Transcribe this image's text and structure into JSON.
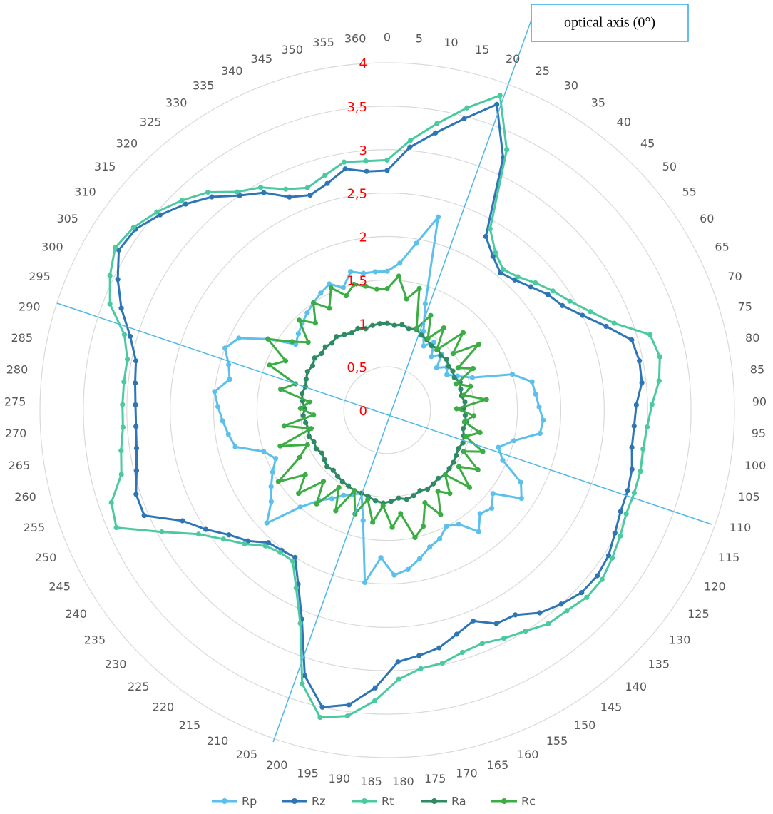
{
  "chart_data": {
    "type": "radar",
    "annotation": "optical axis (0°)",
    "categories": [
      "0",
      "5",
      "10",
      "15",
      "20",
      "25",
      "30",
      "35",
      "40",
      "45",
      "50",
      "55",
      "60",
      "65",
      "70",
      "75",
      "80",
      "85",
      "90",
      "95",
      "100",
      "105",
      "110",
      "115",
      "120",
      "125",
      "130",
      "135",
      "140",
      "145",
      "150",
      "155",
      "160",
      "165",
      "170",
      "175",
      "180",
      "185",
      "190",
      "195",
      "200",
      "205",
      "210",
      "215",
      "220",
      "225",
      "230",
      "235",
      "240",
      "245",
      "250",
      "255",
      "260",
      "265",
      "270",
      "275",
      "280",
      "285",
      "290",
      "295",
      "300",
      "305",
      "310",
      "315",
      "320",
      "325",
      "330",
      "335",
      "340",
      "345",
      "350",
      "355",
      "360"
    ],
    "ylim": [
      0,
      4
    ],
    "yticks": [
      0,
      {
        "value": 0.5,
        "label": "0,5"
      },
      1,
      {
        "value": 1.5,
        "label": "1,5"
      },
      2,
      {
        "value": 2.5,
        "label": "2,5"
      },
      3,
      {
        "value": 3.5,
        "label": "3,5"
      },
      4
    ],
    "grid": true,
    "legend": "bottom",
    "series": [
      {
        "name": "Rp",
        "color": "#5bc0eb",
        "values": [
          1.6,
          1.7,
          1.95,
          2.3,
          1.3,
          1.0,
          0.85,
          0.95,
          0.8,
          0.9,
          0.75,
          0.85,
          0.8,
          0.9,
          1.05,
          1.5,
          1.7,
          1.72,
          1.75,
          1.8,
          1.78,
          1.5,
          1.35,
          1.45,
          1.75,
          1.85,
          1.55,
          1.65,
          1.6,
          1.75,
          1.55,
          1.5,
          1.6,
          1.65,
          1.75,
          1.85,
          1.9,
          1.7,
          2.0,
          1.3,
          1.0,
          1.05,
          1.1,
          1.2,
          1.3,
          1.5,
          1.9,
          1.7,
          1.6,
          1.5,
          1.4,
          1.5,
          1.8,
          1.85,
          1.9,
          1.95,
          2.0,
          1.85,
          1.9,
          2.0,
          1.9,
          1.6,
          1.3,
          1.35,
          1.4,
          1.45,
          1.5,
          1.55,
          1.6,
          1.5,
          1.65,
          1.6,
          1.6
        ]
      },
      {
        "name": "Rz",
        "color": "#2e75b6",
        "values": [
          2.76,
          3.04,
          3.24,
          3.47,
          3.74,
          3.2,
          2.3,
          2.15,
          2.05,
          2.1,
          2.18,
          2.28,
          2.35,
          2.5,
          2.7,
          2.93,
          2.96,
          2.95,
          2.87,
          2.85,
          2.85,
          2.9,
          2.92,
          2.93,
          2.98,
          3.05,
          3.08,
          3.07,
          3.0,
          2.92,
          2.78,
          2.76,
          2.62,
          2.7,
          2.8,
          2.85,
          2.9,
          3.2,
          3.42,
          3.5,
          3.2,
          2.6,
          2.25,
          2.0,
          2.02,
          2.05,
          2.2,
          2.32,
          2.5,
          2.68,
          3.05,
          3.05,
          2.97,
          2.92,
          2.9,
          2.9,
          2.92,
          2.95,
          3.08,
          3.28,
          3.45,
          3.6,
          3.57,
          3.45,
          3.32,
          3.18,
          3.0,
          2.88,
          2.7,
          2.63,
          2.7,
          2.82,
          2.76
        ]
      },
      {
        "name": "Rt",
        "color": "#4bc9a0",
        "values": [
          2.88,
          3.12,
          3.35,
          3.6,
          3.85,
          3.3,
          2.4,
          2.2,
          2.1,
          2.15,
          2.25,
          2.35,
          2.45,
          2.6,
          2.8,
          3.15,
          3.2,
          3.15,
          3.05,
          3.0,
          2.98,
          3.0,
          3.0,
          3.0,
          3.05,
          3.1,
          3.15,
          3.15,
          3.1,
          3.08,
          3.0,
          2.95,
          2.9,
          2.92,
          2.98,
          3.0,
          3.1,
          3.35,
          3.55,
          3.62,
          3.3,
          2.65,
          2.3,
          2.05,
          2.05,
          2.1,
          2.25,
          2.4,
          2.6,
          2.95,
          3.4,
          3.35,
          3.15,
          3.1,
          3.05,
          3.05,
          3.05,
          3.05,
          3.15,
          3.42,
          3.55,
          3.65,
          3.6,
          3.5,
          3.38,
          3.25,
          3.05,
          2.95,
          2.8,
          2.72,
          2.8,
          2.9,
          2.88
        ]
      },
      {
        "name": "Ra",
        "color": "#2d8a63",
        "values": [
          1.0,
          0.98,
          1.0,
          0.97,
          0.99,
          0.95,
          0.93,
          0.9,
          0.92,
          0.88,
          0.9,
          0.87,
          0.88,
          0.86,
          0.9,
          0.88,
          0.87,
          0.9,
          0.88,
          0.9,
          0.92,
          0.9,
          0.93,
          0.95,
          0.93,
          0.95,
          0.97,
          0.98,
          1.0,
          0.98,
          1.0,
          1.02,
          1.0,
          1.03,
          1.05,
          1.02,
          1.05,
          1.07,
          1.05,
          1.02,
          1.0,
          1.0,
          0.98,
          0.97,
          0.95,
          0.93,
          0.95,
          0.92,
          0.9,
          0.93,
          0.92,
          0.95,
          0.93,
          0.95,
          0.97,
          0.95,
          0.98,
          1.0,
          0.98,
          1.0,
          1.02,
          1.0,
          1.03,
          1.0,
          1.02,
          1.0,
          1.03,
          1.0,
          0.98,
          1.0,
          0.97,
          0.99,
          1.0
        ]
      },
      {
        "name": "Rc",
        "color": "#3cad45",
        "values": [
          1.4,
          1.55,
          1.3,
          1.45,
          1.0,
          1.2,
          0.95,
          1.15,
          0.9,
          1.25,
          1.0,
          1.3,
          0.95,
          1.1,
          0.85,
          1.0,
          0.9,
          1.15,
          0.8,
          1.0,
          0.9,
          1.1,
          0.95,
          1.2,
          1.0,
          1.25,
          1.05,
          1.3,
          1.0,
          1.2,
          1.1,
          1.35,
          1.15,
          1.4,
          1.5,
          1.2,
          1.35,
          1.1,
          1.3,
          1.05,
          1.25,
          1.0,
          1.3,
          1.05,
          1.35,
          1.1,
          1.4,
          1.2,
          1.5,
          1.15,
          1.0,
          1.3,
          0.9,
          1.2,
          0.85,
          1.0,
          0.9,
          1.25,
          1.1,
          1.45,
          1.3,
          1.6,
          1.35,
          1.2,
          1.45,
          1.3,
          1.5,
          1.35,
          1.55,
          1.4,
          1.5,
          1.45,
          1.4
        ]
      }
    ]
  }
}
